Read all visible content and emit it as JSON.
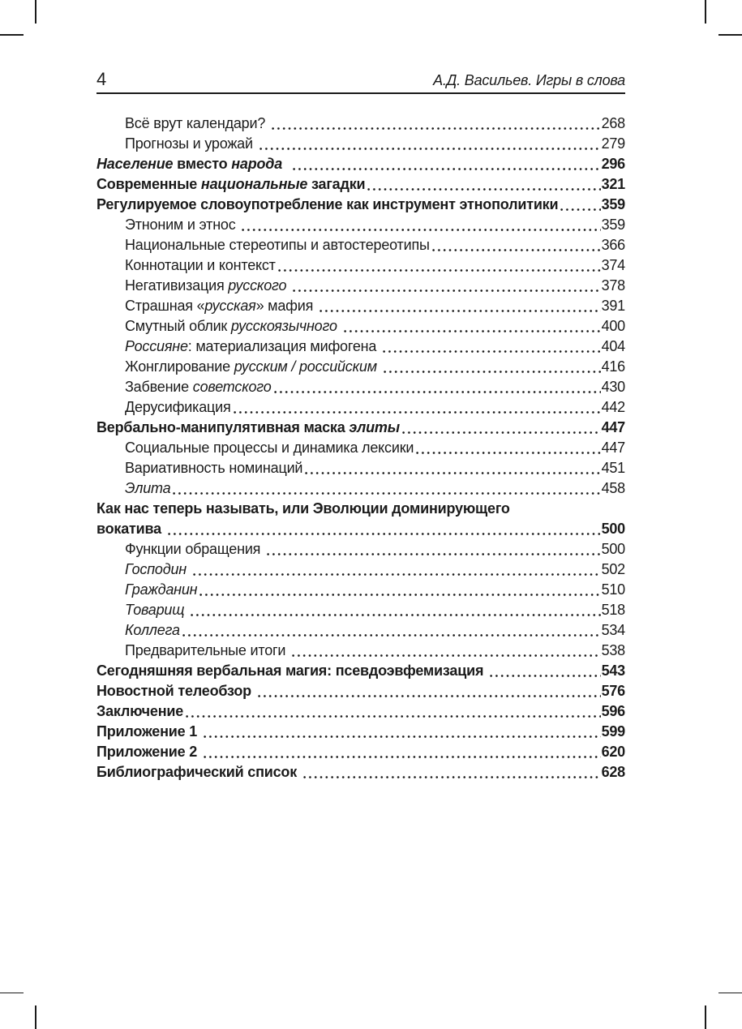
{
  "colors": {
    "text": "#1b1b1b",
    "background": "#ffffff"
  },
  "header": {
    "page_number": "4",
    "running_title": "А.Д. Васильев. Игры в слова"
  },
  "toc": {
    "entries": [
      {
        "indent": true,
        "bold": false,
        "page": "268",
        "segments": [
          {
            "t": "Всё врут календари? ",
            "i": false
          }
        ]
      },
      {
        "indent": true,
        "bold": false,
        "page": "279",
        "segments": [
          {
            "t": "Прогнозы и урожай ",
            "i": false
          }
        ]
      },
      {
        "indent": false,
        "bold": true,
        "page": "296",
        "segments": [
          {
            "t": "Население",
            "i": true
          },
          {
            "t": " вместо ",
            "i": false
          },
          {
            "t": "народа",
            "i": true
          },
          {
            "t": "  ",
            "i": false
          }
        ]
      },
      {
        "indent": false,
        "bold": true,
        "page": "321",
        "segments": [
          {
            "t": "Современные ",
            "i": false
          },
          {
            "t": "национальные",
            "i": true
          },
          {
            "t": " загадки",
            "i": false
          }
        ]
      },
      {
        "indent": false,
        "bold": true,
        "page": "359",
        "segments": [
          {
            "t": "Регулируемое словоупотребление как инструмент этнополитики",
            "i": false
          }
        ]
      },
      {
        "indent": true,
        "bold": false,
        "page": "359",
        "segments": [
          {
            "t": "Этноним и этнос ",
            "i": false
          }
        ]
      },
      {
        "indent": true,
        "bold": false,
        "page": "366",
        "segments": [
          {
            "t": "Национальные стереотипы и автостереотипы",
            "i": false
          }
        ]
      },
      {
        "indent": true,
        "bold": false,
        "page": "374",
        "segments": [
          {
            "t": "Коннотации и контекст",
            "i": false
          }
        ]
      },
      {
        "indent": true,
        "bold": false,
        "page": "378",
        "segments": [
          {
            "t": "Негативизация ",
            "i": false
          },
          {
            "t": "русского",
            "i": true
          },
          {
            "t": " ",
            "i": false
          }
        ]
      },
      {
        "indent": true,
        "bold": false,
        "page": "391",
        "segments": [
          {
            "t": "Страшная «",
            "i": false
          },
          {
            "t": "русская",
            "i": true
          },
          {
            "t": "» мафия ",
            "i": false
          }
        ]
      },
      {
        "indent": true,
        "bold": false,
        "page": "400",
        "segments": [
          {
            "t": "Смутный облик ",
            "i": false
          },
          {
            "t": "русскоязычного",
            "i": true
          },
          {
            "t": " ",
            "i": false
          }
        ]
      },
      {
        "indent": true,
        "bold": false,
        "page": "404",
        "segments": [
          {
            "t": "Россияне",
            "i": true
          },
          {
            "t": ": материализация мифогена ",
            "i": false
          }
        ]
      },
      {
        "indent": true,
        "bold": false,
        "page": "416",
        "segments": [
          {
            "t": "Жонглирование ",
            "i": false
          },
          {
            "t": "русским / российским",
            "i": true
          },
          {
            "t": " ",
            "i": false
          }
        ]
      },
      {
        "indent": true,
        "bold": false,
        "page": "430",
        "segments": [
          {
            "t": "Забвение ",
            "i": false
          },
          {
            "t": "советского",
            "i": true
          }
        ]
      },
      {
        "indent": true,
        "bold": false,
        "page": "442",
        "segments": [
          {
            "t": "Дерусификация",
            "i": false
          }
        ]
      },
      {
        "indent": false,
        "bold": true,
        "page": "447",
        "segments": [
          {
            "t": "Вербально-манипулятивная маска ",
            "i": false
          },
          {
            "t": "элиты",
            "i": true
          }
        ]
      },
      {
        "indent": true,
        "bold": false,
        "page": "447",
        "segments": [
          {
            "t": "Социальные процессы и динамика лексики",
            "i": false
          }
        ]
      },
      {
        "indent": true,
        "bold": false,
        "page": "451",
        "segments": [
          {
            "t": "Вариативность номинаций",
            "i": false
          }
        ]
      },
      {
        "indent": true,
        "bold": false,
        "page": "458",
        "segments": [
          {
            "t": "Элита",
            "i": true
          }
        ]
      },
      {
        "indent": false,
        "bold": true,
        "page": null,
        "segments": [
          {
            "t": "Как нас теперь называть, или Эволюции доминирующего",
            "i": false
          }
        ]
      },
      {
        "indent": false,
        "bold": true,
        "page": "500",
        "segments": [
          {
            "t": "вокатива ",
            "i": false
          }
        ]
      },
      {
        "indent": true,
        "bold": false,
        "page": "500",
        "segments": [
          {
            "t": "Функции обращения ",
            "i": false
          }
        ]
      },
      {
        "indent": true,
        "bold": false,
        "page": "502",
        "segments": [
          {
            "t": "Господин ",
            "i": true
          }
        ]
      },
      {
        "indent": true,
        "bold": false,
        "page": "510",
        "segments": [
          {
            "t": "Гражданин",
            "i": true
          }
        ]
      },
      {
        "indent": true,
        "bold": false,
        "page": "518",
        "segments": [
          {
            "t": "Товарищ ",
            "i": true
          }
        ]
      },
      {
        "indent": true,
        "bold": false,
        "page": "534",
        "segments": [
          {
            "t": "Коллега",
            "i": true
          }
        ]
      },
      {
        "indent": true,
        "bold": false,
        "page": "538",
        "segments": [
          {
            "t": "Предварительные итоги ",
            "i": false
          }
        ]
      },
      {
        "indent": false,
        "bold": true,
        "page": "543",
        "segments": [
          {
            "t": "Сегодняшняя вербальная магия: псевдоэвфемизация ",
            "i": false
          }
        ]
      },
      {
        "indent": false,
        "bold": true,
        "page": "576",
        "segments": [
          {
            "t": "Новостной телеобзор ",
            "i": false
          }
        ]
      },
      {
        "indent": false,
        "bold": true,
        "page": "596",
        "segments": [
          {
            "t": "Заключение",
            "i": false
          }
        ]
      },
      {
        "indent": false,
        "bold": true,
        "page": "599",
        "segments": [
          {
            "t": "Приложение 1 ",
            "i": false
          }
        ]
      },
      {
        "indent": false,
        "bold": true,
        "page": "620",
        "segments": [
          {
            "t": "Приложение 2 ",
            "i": false
          }
        ]
      },
      {
        "indent": false,
        "bold": true,
        "page": "628",
        "segments": [
          {
            "t": "Библиографический список ",
            "i": false
          }
        ]
      }
    ]
  }
}
